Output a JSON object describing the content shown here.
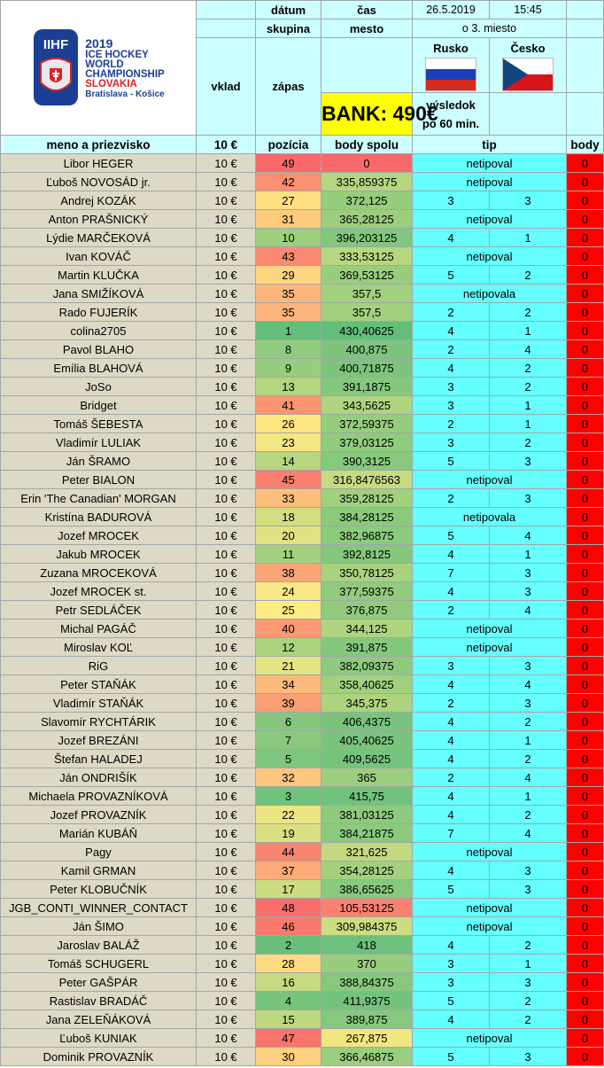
{
  "header": {
    "datum_label": "dátum",
    "cas_label": "čas",
    "date": "26.5.2019",
    "time": "15:45",
    "skupina_label": "skupina",
    "mesto_label": "mesto",
    "group_value": "o 3. miesto",
    "vklad_label": "vklad",
    "zapas_label": "zápas",
    "team1": "Rusko",
    "team2": "Česko",
    "vysledok_line1": "výsledok",
    "vysledok_line2": "po 60 min.",
    "bank": "BANK: 490€",
    "col_name": "meno a priezvisko",
    "col_vklad": "10 €",
    "col_pozicia": "pozícia",
    "col_body_spolu": "body spolu",
    "col_tip": "tip",
    "col_body": "body"
  },
  "logo": {
    "brand": "IIHF",
    "year": "2019",
    "line1": "ICE HOCKEY",
    "line2": "WORLD",
    "line3": "CHAMPIONSHIP",
    "line4": "SLOVAKIA",
    "line5": "Bratislava - Košice"
  },
  "colors": {
    "name_bg": "#ddd9c4",
    "tip_bg": "#66ffff",
    "header_bg": "#ccffff",
    "bank_bg": "#ffff00",
    "body_bg": "#ff0000",
    "rank_best": "#63be7b",
    "rank_mid": "#ffeb84",
    "rank_worst": "#f8696b"
  },
  "rows": [
    {
      "name": "Libor HEGER",
      "vklad": "10 €",
      "pos": "49",
      "total": "0",
      "tip": "netipoval",
      "t1": "",
      "t2": "",
      "body": "0"
    },
    {
      "name": "Ľuboš NOVOSÁD jr.",
      "vklad": "10 €",
      "pos": "42",
      "total": "335,859375",
      "tip": "netipoval",
      "t1": "",
      "t2": "",
      "body": "0"
    },
    {
      "name": "Andrej KOZÁK",
      "vklad": "10 €",
      "pos": "27",
      "total": "372,125",
      "tip": "",
      "t1": "3",
      "t2": "3",
      "body": "0"
    },
    {
      "name": "Anton PRAŠNICKÝ",
      "vklad": "10 €",
      "pos": "31",
      "total": "365,28125",
      "tip": "netipoval",
      "t1": "",
      "t2": "",
      "body": "0"
    },
    {
      "name": "Lýdie MARČEKOVÁ",
      "vklad": "10 €",
      "pos": "10",
      "total": "396,203125",
      "tip": "",
      "t1": "4",
      "t2": "1",
      "body": "0"
    },
    {
      "name": "Ivan KOVÁČ",
      "vklad": "10 €",
      "pos": "43",
      "total": "333,53125",
      "tip": "netipoval",
      "t1": "",
      "t2": "",
      "body": "0"
    },
    {
      "name": "Martin KLUČKA",
      "vklad": "10 €",
      "pos": "29",
      "total": "369,53125",
      "tip": "",
      "t1": "5",
      "t2": "2",
      "body": "0"
    },
    {
      "name": "Jana SMIŽÍKOVÁ",
      "vklad": "10 €",
      "pos": "35",
      "total": "357,5",
      "tip": "netipovala",
      "t1": "",
      "t2": "",
      "body": "0"
    },
    {
      "name": "Rado FUJERÍK",
      "vklad": "10 €",
      "pos": "35",
      "total": "357,5",
      "tip": "",
      "t1": "2",
      "t2": "2",
      "body": "0"
    },
    {
      "name": "colina2705",
      "vklad": "10 €",
      "pos": "1",
      "total": "430,40625",
      "tip": "",
      "t1": "4",
      "t2": "1",
      "body": "0"
    },
    {
      "name": "Pavol BLAHO",
      "vklad": "10 €",
      "pos": "8",
      "total": "400,875",
      "tip": "",
      "t1": "2",
      "t2": "4",
      "body": "0"
    },
    {
      "name": "Emília BLAHOVÁ",
      "vklad": "10 €",
      "pos": "9",
      "total": "400,71875",
      "tip": "",
      "t1": "4",
      "t2": "2",
      "body": "0"
    },
    {
      "name": "JoSo",
      "vklad": "10 €",
      "pos": "13",
      "total": "391,1875",
      "tip": "",
      "t1": "3",
      "t2": "2",
      "body": "0"
    },
    {
      "name": "Bridget",
      "vklad": "10 €",
      "pos": "41",
      "total": "343,5625",
      "tip": "",
      "t1": "3",
      "t2": "1",
      "body": "0"
    },
    {
      "name": "Tomáš ŠEBESTA",
      "vklad": "10 €",
      "pos": "26",
      "total": "372,59375",
      "tip": "",
      "t1": "2",
      "t2": "1",
      "body": "0"
    },
    {
      "name": "Vladimír LULIAK",
      "vklad": "10 €",
      "pos": "23",
      "total": "379,03125",
      "tip": "",
      "t1": "3",
      "t2": "2",
      "body": "0"
    },
    {
      "name": "Ján ŠRAMO",
      "vklad": "10 €",
      "pos": "14",
      "total": "390,3125",
      "tip": "",
      "t1": "5",
      "t2": "3",
      "body": "0"
    },
    {
      "name": "Peter BIALON",
      "vklad": "10 €",
      "pos": "45",
      "total": "316,8476563",
      "tip": "netipoval",
      "t1": "",
      "t2": "",
      "body": "0"
    },
    {
      "name": "Erin 'The Canadian' MORGAN",
      "vklad": "10 €",
      "pos": "33",
      "total": "359,28125",
      "tip": "",
      "t1": "2",
      "t2": "3",
      "body": "0"
    },
    {
      "name": "Kristína BADUROVÁ",
      "vklad": "10 €",
      "pos": "18",
      "total": "384,28125",
      "tip": "netipovala",
      "t1": "",
      "t2": "",
      "body": "0"
    },
    {
      "name": "Jozef MROCEK",
      "vklad": "10 €",
      "pos": "20",
      "total": "382,96875",
      "tip": "",
      "t1": "5",
      "t2": "4",
      "body": "0"
    },
    {
      "name": "Jakub MROCEK",
      "vklad": "10 €",
      "pos": "11",
      "total": "392,8125",
      "tip": "",
      "t1": "4",
      "t2": "1",
      "body": "0"
    },
    {
      "name": "Zuzana MROCEKOVÁ",
      "vklad": "10 €",
      "pos": "38",
      "total": "350,78125",
      "tip": "",
      "t1": "7",
      "t2": "3",
      "body": "0"
    },
    {
      "name": "Jozef MROCEK st.",
      "vklad": "10 €",
      "pos": "24",
      "total": "377,59375",
      "tip": "",
      "t1": "4",
      "t2": "3",
      "body": "0"
    },
    {
      "name": "Petr SEDLÁČEK",
      "vklad": "10 €",
      "pos": "25",
      "total": "376,875",
      "tip": "",
      "t1": "2",
      "t2": "4",
      "body": "0"
    },
    {
      "name": "Michal PAGÁČ",
      "vklad": "10 €",
      "pos": "40",
      "total": "344,125",
      "tip": "netipoval",
      "t1": "",
      "t2": "",
      "body": "0"
    },
    {
      "name": "Miroslav KOĽ",
      "vklad": "10 €",
      "pos": "12",
      "total": "391,875",
      "tip": "netipoval",
      "t1": "",
      "t2": "",
      "body": "0"
    },
    {
      "name": "RiG",
      "vklad": "10 €",
      "pos": "21",
      "total": "382,09375",
      "tip": "",
      "t1": "3",
      "t2": "3",
      "body": "0"
    },
    {
      "name": "Peter STAŇÁK",
      "vklad": "10 €",
      "pos": "34",
      "total": "358,40625",
      "tip": "",
      "t1": "4",
      "t2": "4",
      "body": "0"
    },
    {
      "name": "Vladimír STAŇÁK",
      "vklad": "10 €",
      "pos": "39",
      "total": "345,375",
      "tip": "",
      "t1": "2",
      "t2": "3",
      "body": "0"
    },
    {
      "name": "Slavomír RYCHTÁRIK",
      "vklad": "10 €",
      "pos": "6",
      "total": "406,4375",
      "tip": "",
      "t1": "4",
      "t2": "2",
      "body": "0"
    },
    {
      "name": "Jozef BREZÁNI",
      "vklad": "10 €",
      "pos": "7",
      "total": "405,40625",
      "tip": "",
      "t1": "4",
      "t2": "1",
      "body": "0"
    },
    {
      "name": "Štefan HALADEJ",
      "vklad": "10 €",
      "pos": "5",
      "total": "409,5625",
      "tip": "",
      "t1": "4",
      "t2": "2",
      "body": "0"
    },
    {
      "name": "Ján ONDRIŠÍK",
      "vklad": "10 €",
      "pos": "32",
      "total": "365",
      "tip": "",
      "t1": "2",
      "t2": "4",
      "body": "0"
    },
    {
      "name": "Michaela PROVAZNÍKOVÁ",
      "vklad": "10 €",
      "pos": "3",
      "total": "415,75",
      "tip": "",
      "t1": "4",
      "t2": "1",
      "body": "0"
    },
    {
      "name": "Jozef PROVAZNÍK",
      "vklad": "10 €",
      "pos": "22",
      "total": "381,03125",
      "tip": "",
      "t1": "4",
      "t2": "2",
      "body": "0"
    },
    {
      "name": "Marián KUBÁŇ",
      "vklad": "10 €",
      "pos": "19",
      "total": "384,21875",
      "tip": "",
      "t1": "7",
      "t2": "4",
      "body": "0"
    },
    {
      "name": "Pagy",
      "vklad": "10 €",
      "pos": "44",
      "total": "321,625",
      "tip": "netipoval",
      "t1": "",
      "t2": "",
      "body": "0"
    },
    {
      "name": "Kamil GRMAN",
      "vklad": "10 €",
      "pos": "37",
      "total": "354,28125",
      "tip": "",
      "t1": "4",
      "t2": "3",
      "body": "0"
    },
    {
      "name": "Peter KLOBUČNÍK",
      "vklad": "10 €",
      "pos": "17",
      "total": "386,65625",
      "tip": "",
      "t1": "5",
      "t2": "3",
      "body": "0"
    },
    {
      "name": "JGB_CONTI_WINNER_CONTACT",
      "vklad": "10 €",
      "pos": "48",
      "total": "105,53125",
      "tip": "netipoval",
      "t1": "",
      "t2": "",
      "body": "0"
    },
    {
      "name": "Ján ŠIMO",
      "vklad": "10 €",
      "pos": "46",
      "total": "309,984375",
      "tip": "netipoval",
      "t1": "",
      "t2": "",
      "body": "0"
    },
    {
      "name": "Jaroslav BALÁŽ",
      "vklad": "10 €",
      "pos": "2",
      "total": "418",
      "tip": "",
      "t1": "4",
      "t2": "2",
      "body": "0"
    },
    {
      "name": "Tomáš SCHUGERL",
      "vklad": "10 €",
      "pos": "28",
      "total": "370",
      "tip": "",
      "t1": "3",
      "t2": "1",
      "body": "0"
    },
    {
      "name": "Peter GAŠPÁR",
      "vklad": "10 €",
      "pos": "16",
      "total": "388,84375",
      "tip": "",
      "t1": "3",
      "t2": "3",
      "body": "0"
    },
    {
      "name": "Rastislav BRADÁČ",
      "vklad": "10 €",
      "pos": "4",
      "total": "411,9375",
      "tip": "",
      "t1": "5",
      "t2": "2",
      "body": "0"
    },
    {
      "name": "Jana ZELEŇÁKOVÁ",
      "vklad": "10 €",
      "pos": "15",
      "total": "389,875",
      "tip": "",
      "t1": "4",
      "t2": "2",
      "body": "0"
    },
    {
      "name": "Ľuboš KUNIAK",
      "vklad": "10 €",
      "pos": "47",
      "total": "267,875",
      "tip": "netipoval",
      "t1": "",
      "t2": "",
      "body": "0"
    },
    {
      "name": "Dominik PROVAZNÍK",
      "vklad": "10 €",
      "pos": "30",
      "total": "366,46875",
      "tip": "",
      "t1": "5",
      "t2": "3",
      "body": "0"
    }
  ]
}
